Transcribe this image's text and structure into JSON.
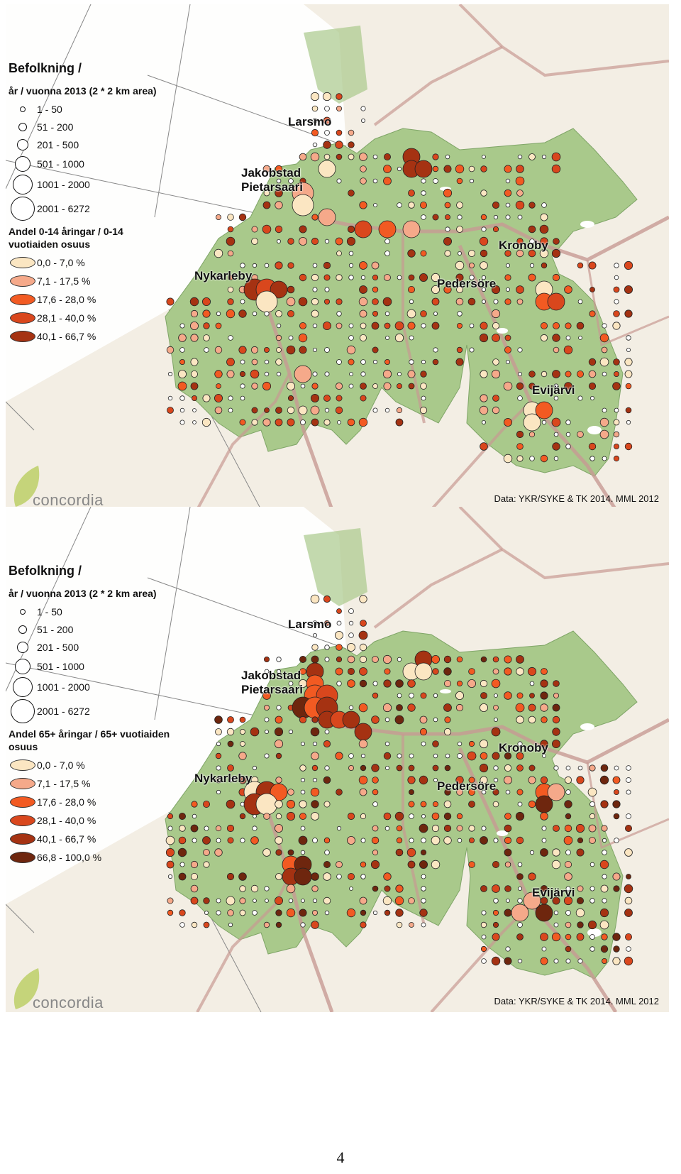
{
  "colors": {
    "land_background": "#f3eee4",
    "region_fill": "#a9c98b",
    "road": "#c79a93",
    "class_1": "#fbe6c2",
    "class_2": "#f5a98a",
    "class_3": "#f25a22",
    "class_4": "#d9471d",
    "class_5": "#a53212",
    "class_6": "#6e260e"
  },
  "maps": [
    {
      "legend": {
        "title": "Befolkning /",
        "size_heading": "år / vuonna 2013 (2 * 2 km area)",
        "size_classes": [
          "1 - 50",
          "51 - 200",
          "201 - 500",
          "501 - 1000",
          "1001 - 2000",
          "2001 - 6272"
        ],
        "color_heading": "Andel 0-14 åringar / 0-14 vuotiaiden osuus",
        "color_classes": [
          "0,0 - 7,0 %",
          "7,1 - 17,5 %",
          "17,6 - 28,0 %",
          "28,1 - 40,0 %",
          "40,1 - 66,7 %"
        ]
      },
      "places": [
        "Larsmo",
        "Jakobstad",
        "Pietarsaari",
        "Nykarleby",
        "Kronoby",
        "Pedersöre",
        "Evijärvi"
      ],
      "credit": "Data: YKR/SYKE & TK 2014. MML 2012",
      "logo": "concordia"
    },
    {
      "legend": {
        "title": "Befolkning /",
        "size_heading": "år / vuonna 2013 (2 * 2 km area)",
        "size_classes": [
          "1 - 50",
          "51 - 200",
          "201 - 500",
          "501 - 1000",
          "1001 - 2000",
          "2001 - 6272"
        ],
        "color_heading": "Andel 65+ åringar / 65+ vuotiaiden osuus",
        "color_classes": [
          "0,0 - 7,0 %",
          "7,1 - 17,5 %",
          "17,6 - 28,0 %",
          "28,1 - 40,0 %",
          "40,1 - 66,7 %",
          "66,8 - 100,0 %"
        ]
      },
      "places": [
        "Larsmo",
        "Jakobstad",
        "Pietarsaari",
        "Nykarleby",
        "Kronoby",
        "Pedersöre",
        "Evijärvi"
      ],
      "credit": "Data: YKR/SYKE & TK 2014. MML 2012",
      "logo": "concordia"
    }
  ],
  "page_number": "4"
}
